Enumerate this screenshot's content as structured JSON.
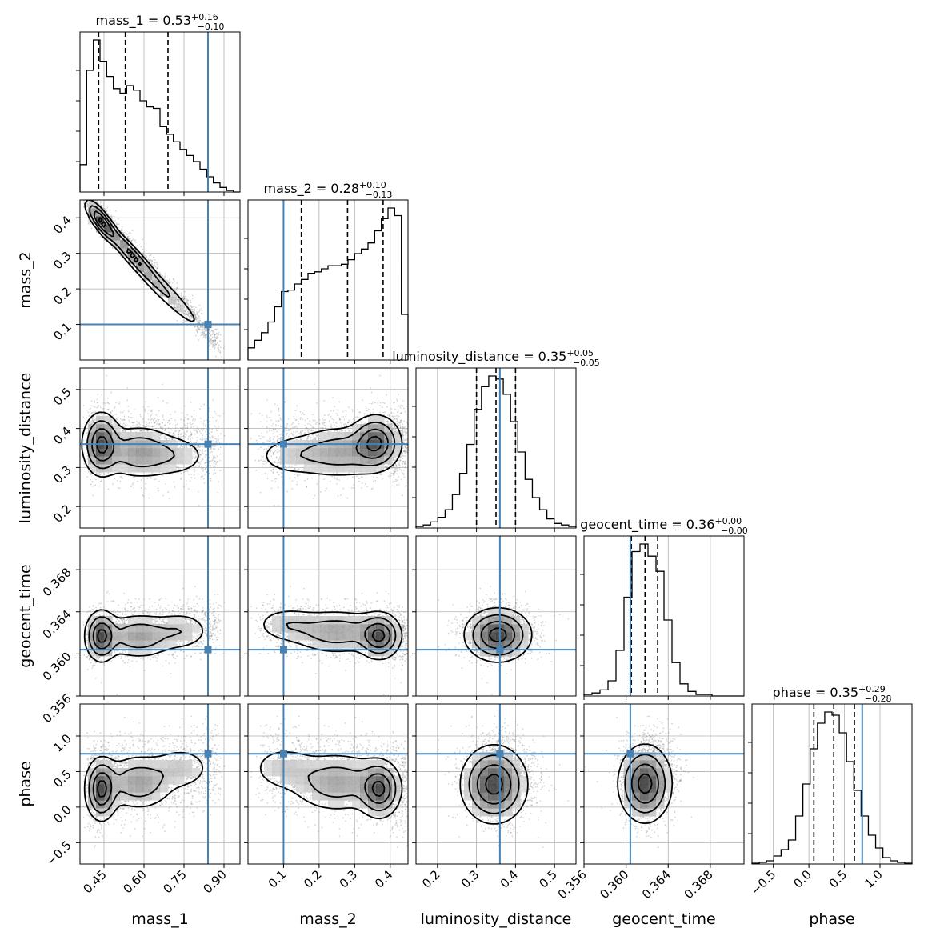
{
  "chart_data": {
    "type": "corner",
    "parameters": [
      "mass_1",
      "mass_2",
      "luminosity_distance",
      "geocent_time",
      "phase"
    ],
    "axes": {
      "mass_1": {
        "range": [
          0.36,
          0.96
        ],
        "ticks": [
          0.45,
          0.6,
          0.75,
          0.9
        ],
        "tick_labels": [
          "0.45",
          "0.60",
          "0.75",
          "0.90"
        ]
      },
      "mass_2": {
        "range": [
          0.0,
          0.45
        ],
        "ticks": [
          0.1,
          0.2,
          0.3,
          0.4
        ],
        "tick_labels": [
          "0.1",
          "0.2",
          "0.3",
          "0.4"
        ]
      },
      "luminosity_distance": {
        "range": [
          0.145,
          0.555
        ],
        "ticks": [
          0.2,
          0.3,
          0.4,
          0.5
        ],
        "tick_labels": [
          "0.2",
          "0.3",
          "0.4",
          "0.5"
        ]
      },
      "geocent_time": {
        "range": [
          0.356,
          0.3712
        ],
        "ticks": [
          0.356,
          0.36,
          0.364,
          0.368
        ],
        "tick_labels": [
          "0.356",
          "0.360",
          "0.364",
          "0.368"
        ]
      },
      "phase": {
        "range": [
          -0.8,
          1.45
        ],
        "ticks": [
          -0.5,
          0.0,
          0.5,
          1.0
        ],
        "tick_labels": [
          "−0.5",
          "0.0",
          "0.5",
          "1.0"
        ]
      }
    },
    "titles": [
      {
        "param": "mass_1",
        "median": "0.53",
        "plus": "+0.16",
        "minus": "−0.10"
      },
      {
        "param": "mass_2",
        "median": "0.28",
        "plus": "+0.10",
        "minus": "−0.13"
      },
      {
        "param": "luminosity_distance",
        "median": "0.35",
        "plus": "+0.05",
        "minus": "−0.05"
      },
      {
        "param": "geocent_time",
        "median": "0.36",
        "plus": "+0.00",
        "minus": "−0.00"
      },
      {
        "param": "phase",
        "median": "0.35",
        "plus": "+0.29",
        "minus": "−0.28"
      }
    ],
    "quantiles": {
      "mass_1": [
        0.43,
        0.53,
        0.69
      ],
      "mass_2": [
        0.15,
        0.28,
        0.38
      ],
      "luminosity_distance": [
        0.3,
        0.35,
        0.4
      ],
      "geocent_time": [
        0.3605,
        0.3618,
        0.363
      ],
      "phase": [
        0.07,
        0.35,
        0.64
      ]
    },
    "truths": {
      "mass_1": 0.84,
      "mass_2": 0.1,
      "luminosity_distance": 0.36,
      "geocent_time": 0.3604,
      "phase": 0.75
    },
    "histograms": {
      "mass_1": {
        "edges_range": [
          0.36,
          0.96
        ],
        "counts": [
          0.18,
          0.8,
          1.0,
          0.86,
          0.76,
          0.68,
          0.65,
          0.7,
          0.67,
          0.6,
          0.56,
          0.55,
          0.43,
          0.38,
          0.33,
          0.28,
          0.24,
          0.2,
          0.15,
          0.1,
          0.06,
          0.03,
          0.01,
          0.0
        ]
      },
      "mass_2": {
        "edges_range": [
          0.0,
          0.45
        ],
        "counts": [
          0.08,
          0.13,
          0.18,
          0.25,
          0.35,
          0.45,
          0.46,
          0.5,
          0.53,
          0.57,
          0.58,
          0.6,
          0.62,
          0.62,
          0.63,
          0.66,
          0.7,
          0.73,
          0.77,
          0.85,
          0.93,
          1.0,
          0.95,
          0.3
        ]
      },
      "luminosity_distance": {
        "edges_range": [
          0.145,
          0.555
        ],
        "counts": [
          0.01,
          0.02,
          0.04,
          0.07,
          0.12,
          0.22,
          0.36,
          0.55,
          0.78,
          0.93,
          1.0,
          0.98,
          0.88,
          0.7,
          0.5,
          0.32,
          0.2,
          0.12,
          0.06,
          0.03,
          0.02,
          0.01
        ]
      },
      "geocent_time": {
        "edges_range": [
          0.356,
          0.3712
        ],
        "counts": [
          0.01,
          0.02,
          0.04,
          0.1,
          0.3,
          0.65,
          0.95,
          1.0,
          0.92,
          0.82,
          0.5,
          0.22,
          0.08,
          0.03,
          0.01,
          0.01,
          0.0,
          0.0,
          0.0,
          0.0
        ]
      },
      "phase": {
        "edges_range": [
          -0.8,
          1.45
        ],
        "counts": [
          0.005,
          0.01,
          0.02,
          0.05,
          0.09,
          0.15,
          0.3,
          0.5,
          0.72,
          0.88,
          0.95,
          0.93,
          0.82,
          0.64,
          0.46,
          0.3,
          0.18,
          0.1,
          0.04,
          0.02,
          0.01,
          0.005
        ]
      }
    },
    "grid": true
  }
}
